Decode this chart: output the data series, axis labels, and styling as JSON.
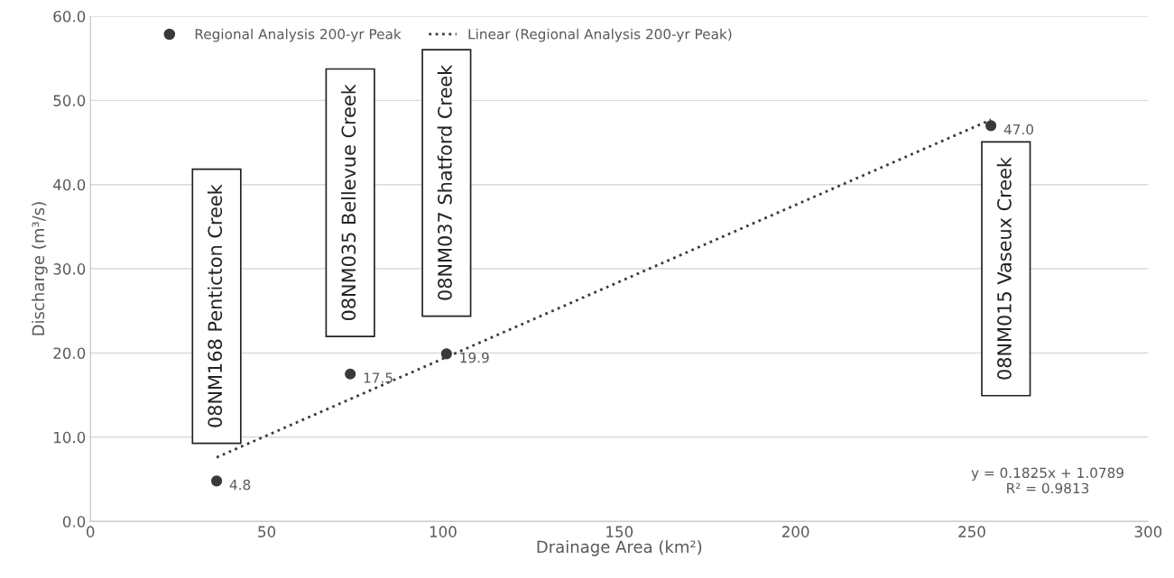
{
  "chart_data": {
    "type": "scatter",
    "xlabel": "Drainage Area (km²)",
    "ylabel": "Discharge (m³/s)",
    "xlim": [
      0,
      300
    ],
    "xticks": [
      0,
      50,
      100,
      150,
      200,
      250,
      300
    ],
    "ylim": [
      0,
      60
    ],
    "yticks": [
      {
        "value": 0,
        "label": "0.0"
      },
      {
        "value": 10,
        "label": "10.0"
      },
      {
        "value": 20,
        "label": "20.0"
      },
      {
        "value": 30,
        "label": "30.0"
      },
      {
        "value": 40,
        "label": "40.0"
      },
      {
        "value": 50,
        "label": "50.0"
      },
      {
        "value": 60,
        "label": "60.0"
      }
    ],
    "grid": "y",
    "legend": "top left",
    "series": [
      {
        "name": "Regional Analysis 200-yr Peak",
        "color": "#3a3a3a",
        "marker": "circle",
        "x": [
          35.8,
          73.7,
          101,
          255.4
        ],
        "values": [
          4.8,
          17.5,
          19.9,
          47.0
        ],
        "value_labels": [
          "4.8",
          "17.5",
          "19.9",
          "47.0"
        ]
      },
      {
        "name": "Linear (Regional Analysis 200-yr Peak)",
        "type": "line",
        "color": "#3a3a3a",
        "line_style": "dotted",
        "x": [
          35.8,
          255.4
        ],
        "values": [
          7.6,
          47.7
        ]
      }
    ],
    "annotations": [
      {
        "text": "08NM168 Penticton Creek",
        "x": 35.8,
        "y": 4.8
      },
      {
        "text": "08NM035 Bellevue Creek",
        "x": 73.7,
        "y": 17.5
      },
      {
        "text": "08NM037 Shatford Creek",
        "x": 101,
        "y": 19.9
      },
      {
        "text": "08NM015 Vaseux Creek",
        "x": 255.4,
        "y": 47.0
      },
      "y = 0.1825x + 1.0789\nR² = 0.9813"
    ]
  }
}
